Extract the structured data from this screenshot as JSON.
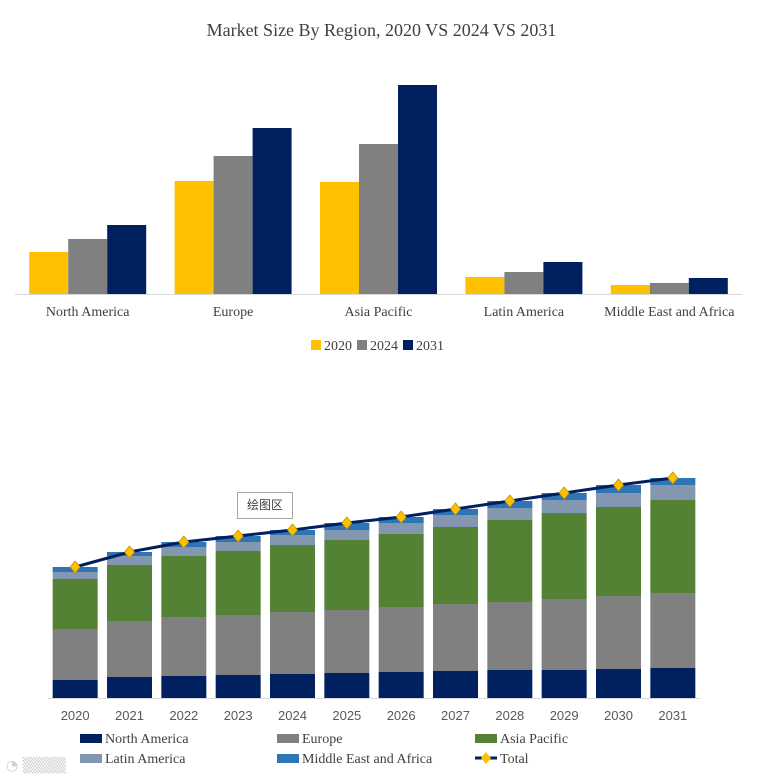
{
  "chart_data": [
    {
      "type": "bar",
      "title": "Market Size By Region, 2020 VS 2024 VS 2031",
      "categories": [
        "North America",
        "Europe",
        "Asia Pacific",
        "Latin America",
        "Middle East and Africa"
      ],
      "series": [
        {
          "name": "2020",
          "color": "#ffc000",
          "values": [
            42,
            113,
            112,
            17,
            9
          ]
        },
        {
          "name": "2024",
          "color": "#808080",
          "values": [
            55,
            138,
            150,
            22,
            11
          ]
        },
        {
          "name": "2031",
          "color": "#002060",
          "values": [
            69,
            166,
            209,
            32,
            16
          ]
        }
      ],
      "ylim": [
        0,
        220
      ],
      "legend": "bottom",
      "grid": false
    },
    {
      "type": "bar",
      "stacked": true,
      "categories": [
        "2020",
        "2021",
        "2022",
        "2023",
        "2024",
        "2025",
        "2026",
        "2027",
        "2028",
        "2029",
        "2030",
        "2031"
      ],
      "series": [
        {
          "name": "North America",
          "color": "#002060",
          "values": [
            18,
            21,
            22,
            23,
            24,
            25,
            26,
            27,
            28,
            28,
            29,
            30
          ]
        },
        {
          "name": "Europe",
          "color": "#808080",
          "values": [
            51,
            56,
            59,
            60,
            62,
            63,
            65,
            67,
            68,
            71,
            73,
            75
          ]
        },
        {
          "name": "Asia Pacific",
          "color": "#548235",
          "values": [
            50,
            56,
            61,
            64,
            67,
            70,
            73,
            77,
            82,
            86,
            89,
            93
          ]
        },
        {
          "name": "Latin America",
          "color": "#8497b0",
          "values": [
            7,
            9,
            9,
            9,
            10,
            10,
            11,
            12,
            12,
            13,
            14,
            15
          ]
        },
        {
          "name": "Middle East and Africa",
          "color": "#2e75b6",
          "values": [
            5,
            4,
            5,
            6,
            5,
            7,
            6,
            6,
            7,
            7,
            8,
            7
          ]
        }
      ],
      "line_series": {
        "name": "Total",
        "color": "#002060",
        "marker_color": "#ffc000",
        "values": [
          131,
          146,
          156,
          162,
          168,
          175,
          181,
          189,
          197,
          205,
          213,
          220
        ]
      },
      "ylim": [
        0,
        240
      ],
      "legend": "bottom",
      "tooltip": "绘图区"
    }
  ],
  "watermark": "大数跨境"
}
